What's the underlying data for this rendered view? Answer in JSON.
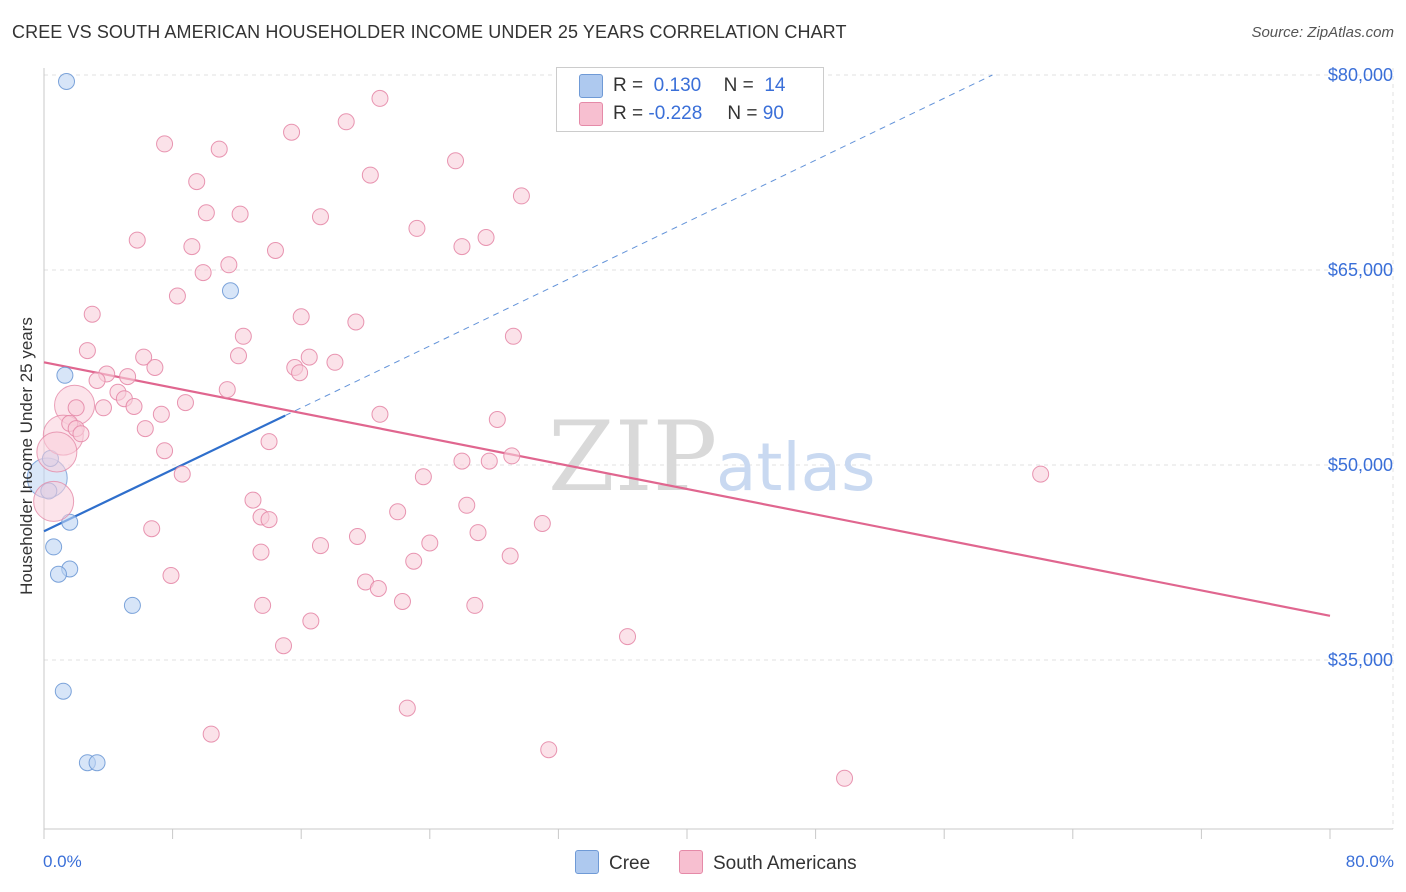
{
  "header": {
    "title": "CREE VS SOUTH AMERICAN HOUSEHOLDER INCOME UNDER 25 YEARS CORRELATION CHART",
    "source": "Source: ZipAtlas.com"
  },
  "watermark": {
    "zip": "ZIP",
    "atlas": "atlas"
  },
  "legend": {
    "rows": [
      {
        "r_label": "R =",
        "r_value": "0.130",
        "n_label": "N =",
        "n_value": "14",
        "color": "#aec9ef",
        "edge": "#6f9ad6"
      },
      {
        "r_label": "R =",
        "r_value": "-0.228",
        "n_label": "N =",
        "n_value": "90",
        "color": "#f7bfd0",
        "edge": "#e58aa8"
      }
    ]
  },
  "bottom_legend": [
    {
      "label": "Cree",
      "color": "#aec9ef"
    },
    {
      "label": "South Americans",
      "color": "#f7bfd0"
    }
  ],
  "chart_data": {
    "type": "scatter",
    "xlabel": "",
    "ylabel": "Householder Income Under 25 years",
    "xlim": [
      0,
      80
    ],
    "ylim": [
      22000,
      81000
    ],
    "x_tick_labels": [
      "0.0%",
      "80.0%"
    ],
    "y_ticks": [
      80000,
      65000,
      50000,
      35000
    ],
    "y_tick_labels": [
      "$80,000",
      "$65,000",
      "$50,000",
      "$35,000"
    ],
    "grid": true,
    "colors": {
      "cree": "#6f9ad6",
      "south": "#e58aa8",
      "cree_line": "#2f6fcc",
      "south_line": "#e0668f",
      "tick": "#3a6fd8"
    },
    "series": [
      {
        "name": "Cree",
        "points": [
          [
            1.4,
            79.5
          ],
          [
            1.3,
            56.9
          ],
          [
            0.4,
            50.5
          ],
          [
            0.3,
            48.0
          ],
          [
            1.6,
            45.6
          ],
          [
            0.6,
            43.7
          ],
          [
            1.6,
            42.0
          ],
          [
            0.9,
            41.6
          ],
          [
            5.5,
            39.2
          ],
          [
            11.6,
            63.4
          ],
          [
            1.2,
            32.6
          ],
          [
            2.7,
            27.1
          ],
          [
            3.3,
            27.1
          ]
        ],
        "big_points": [
          [
            0.2,
            49.0
          ]
        ],
        "trend": {
          "x0": 0,
          "y0": 44.9,
          "x1": 15.0,
          "y1": 53.8,
          "dash_x1": 59.0,
          "dash_y1": 80.0
        }
      },
      {
        "name": "South Americans",
        "points": [
          [
            20.9,
            78.2
          ],
          [
            18.8,
            76.4
          ],
          [
            15.4,
            75.6
          ],
          [
            7.5,
            74.7
          ],
          [
            10.9,
            74.3
          ],
          [
            25.6,
            73.4
          ],
          [
            20.3,
            72.3
          ],
          [
            9.5,
            71.8
          ],
          [
            29.7,
            70.7
          ],
          [
            10.1,
            69.4
          ],
          [
            12.2,
            69.3
          ],
          [
            17.2,
            69.1
          ],
          [
            23.2,
            68.2
          ],
          [
            27.5,
            67.5
          ],
          [
            5.8,
            67.3
          ],
          [
            9.2,
            66.8
          ],
          [
            26.0,
            66.8
          ],
          [
            14.4,
            66.5
          ],
          [
            11.5,
            65.4
          ],
          [
            9.9,
            64.8
          ],
          [
            8.3,
            63.0
          ],
          [
            3.0,
            61.6
          ],
          [
            16.0,
            61.4
          ],
          [
            19.4,
            61.0
          ],
          [
            12.4,
            59.9
          ],
          [
            29.2,
            59.9
          ],
          [
            2.7,
            58.8
          ],
          [
            6.2,
            58.3
          ],
          [
            12.1,
            58.4
          ],
          [
            16.5,
            58.3
          ],
          [
            18.1,
            57.9
          ],
          [
            6.9,
            57.5
          ],
          [
            15.6,
            57.5
          ],
          [
            15.9,
            57.1
          ],
          [
            3.9,
            57.0
          ],
          [
            5.2,
            56.8
          ],
          [
            3.3,
            56.5
          ],
          [
            11.4,
            55.8
          ],
          [
            4.6,
            55.6
          ],
          [
            5.0,
            55.1
          ],
          [
            8.8,
            54.8
          ],
          [
            5.6,
            54.5
          ],
          [
            3.7,
            54.4
          ],
          [
            2.0,
            54.4
          ],
          [
            7.3,
            53.9
          ],
          [
            20.9,
            53.9
          ],
          [
            28.2,
            53.5
          ],
          [
            1.6,
            53.2
          ],
          [
            2.0,
            52.8
          ],
          [
            2.3,
            52.4
          ],
          [
            6.3,
            52.8
          ],
          [
            14.0,
            51.8
          ],
          [
            7.5,
            51.1
          ],
          [
            29.1,
            50.7
          ],
          [
            26.0,
            50.3
          ],
          [
            27.7,
            50.3
          ],
          [
            8.6,
            49.3
          ],
          [
            23.6,
            49.1
          ],
          [
            62.0,
            49.3
          ],
          [
            13.0,
            47.3
          ],
          [
            26.3,
            46.9
          ],
          [
            22.0,
            46.4
          ],
          [
            13.5,
            46.0
          ],
          [
            14.0,
            45.8
          ],
          [
            31.0,
            45.5
          ],
          [
            6.7,
            45.1
          ],
          [
            19.5,
            44.5
          ],
          [
            27.0,
            44.8
          ],
          [
            17.2,
            43.8
          ],
          [
            24.0,
            44.0
          ],
          [
            13.5,
            43.3
          ],
          [
            29.0,
            43.0
          ],
          [
            23.0,
            42.6
          ],
          [
            7.9,
            41.5
          ],
          [
            20.0,
            41.0
          ],
          [
            20.8,
            40.5
          ],
          [
            22.3,
            39.5
          ],
          [
            13.6,
            39.2
          ],
          [
            26.8,
            39.2
          ],
          [
            16.6,
            38.0
          ],
          [
            36.3,
            36.8
          ],
          [
            14.9,
            36.1
          ],
          [
            22.6,
            31.3
          ],
          [
            10.4,
            29.3
          ],
          [
            31.4,
            28.1
          ],
          [
            49.8,
            25.9
          ]
        ],
        "big_points": [
          [
            1.9,
            54.6
          ],
          [
            1.2,
            52.3
          ],
          [
            0.8,
            51.0
          ],
          [
            0.6,
            47.2
          ]
        ],
        "trend": {
          "x0": 0,
          "y0": 57.9,
          "x1": 80.0,
          "y1": 38.4
        }
      }
    ]
  }
}
